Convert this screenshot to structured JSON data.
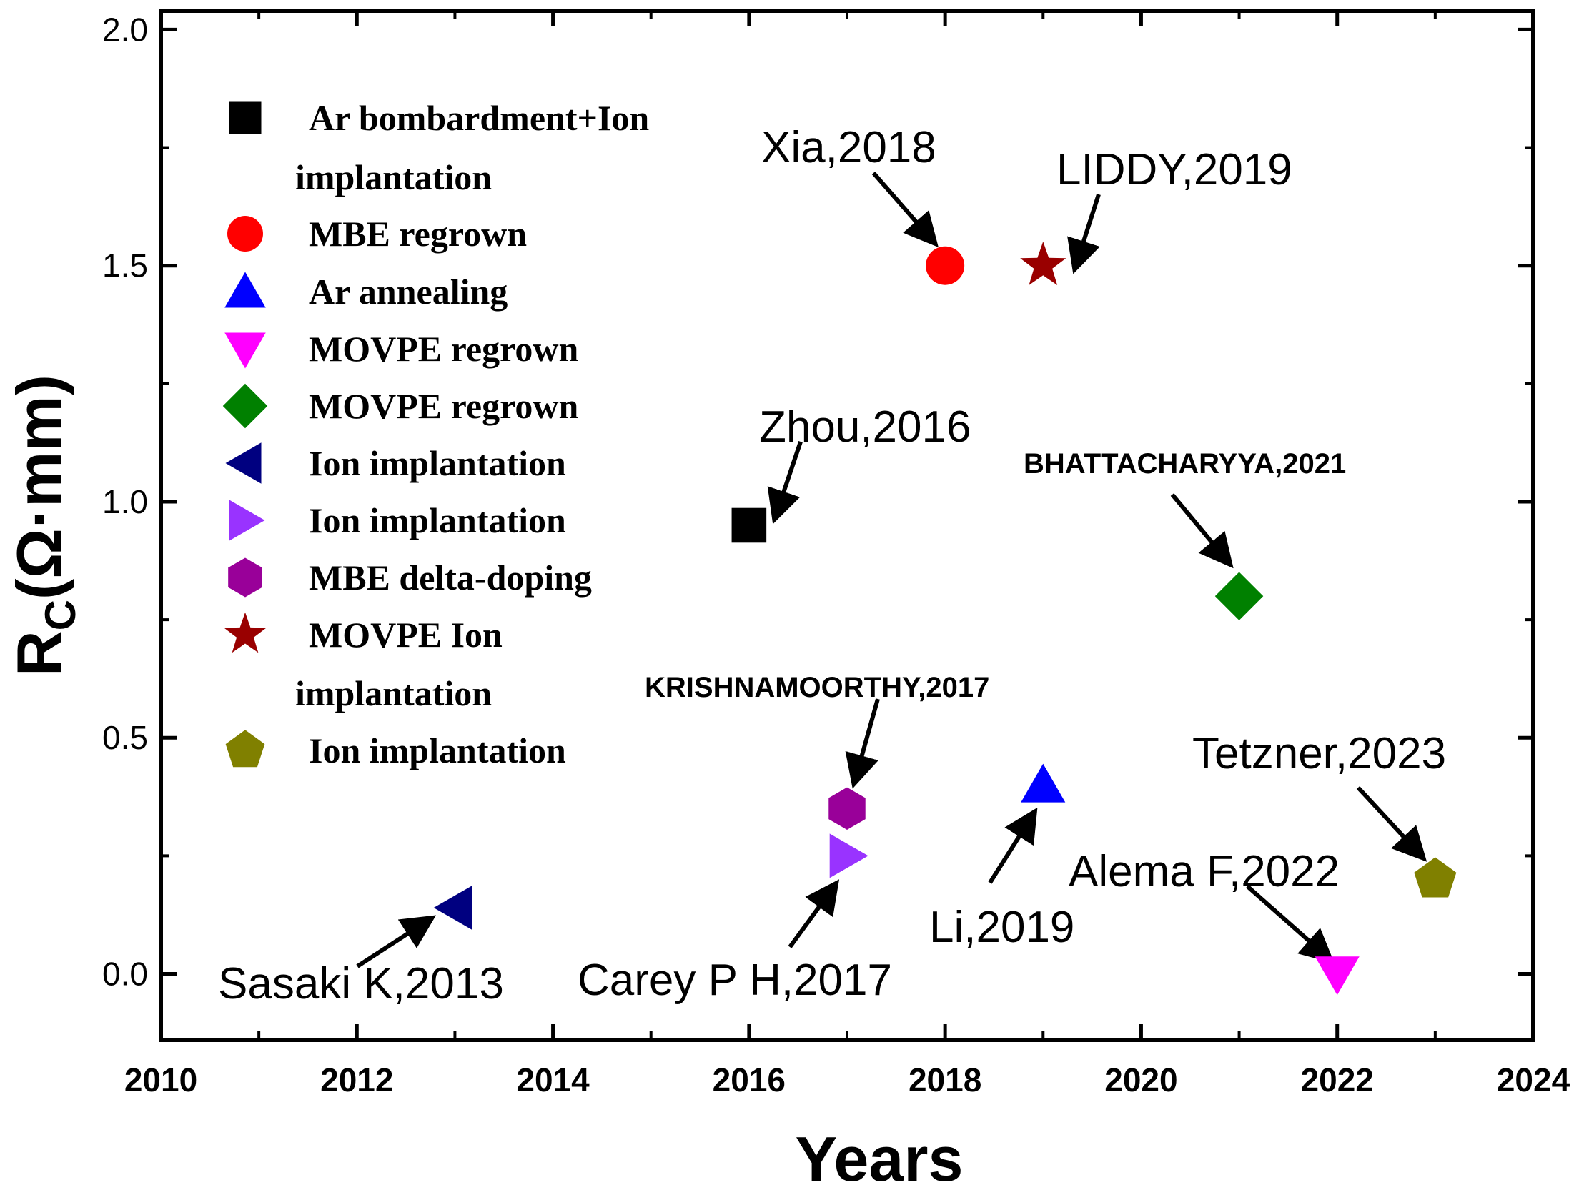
{
  "chart_data": {
    "type": "scatter",
    "title": "",
    "xlabel": "Years",
    "ylabel_main": "R",
    "ylabel_sub": "C",
    "ylabel_unit": "(Ω·mm)",
    "xlim": [
      2010,
      2024
    ],
    "ylim": [
      -0.14,
      2.04
    ],
    "xticks": [
      2010,
      2012,
      2014,
      2016,
      2018,
      2020,
      2022,
      2024
    ],
    "xtick_labels": [
      "2010",
      "2012",
      "2014",
      "2016",
      "2018",
      "2020",
      "2022",
      "2024"
    ],
    "yticks": [
      0.0,
      0.5,
      1.0,
      1.5,
      2.0
    ],
    "ytick_labels": [
      "0.0",
      "0.5",
      "1.0",
      "1.5",
      "2.0"
    ],
    "grid": false,
    "legend_position": "upper-left",
    "series": [
      {
        "name": "Ar bombardment+Ion implantation",
        "legend_lines": [
          "Ar bombardment+Ion",
          "implantation"
        ],
        "marker": "square",
        "color": "#000000",
        "x": 2016,
        "y": 0.95,
        "annotation": "Zhou,2016",
        "annotation_style": "plain"
      },
      {
        "name": "MBE regrown",
        "legend_lines": [
          " MBE regrown"
        ],
        "marker": "circle",
        "color": "#ff0000",
        "x": 2018,
        "y": 1.5,
        "annotation": "Xia,2018",
        "annotation_style": "plain"
      },
      {
        "name": "Ar annealing",
        "legend_lines": [
          "Ar annealing"
        ],
        "marker": "triangle-up",
        "color": "#0000ff",
        "x": 2019,
        "y": 0.4,
        "annotation": "Li,2019",
        "annotation_style": "plain"
      },
      {
        "name": "MOVPE regrown",
        "legend_lines": [
          "MOVPE regrown"
        ],
        "marker": "triangle-down",
        "color": "#ff00ff",
        "x": 2022,
        "y": 0.0,
        "annotation": "Alema F,2022",
        "annotation_style": "plain"
      },
      {
        "name": "MOVPE regrown",
        "legend_lines": [
          "MOVPE regrown"
        ],
        "marker": "diamond",
        "color": "#008000",
        "x": 2021,
        "y": 0.8,
        "annotation": "BHATTACHARYYA,2021",
        "annotation_style": "bold"
      },
      {
        "name": "Ion implantation",
        "legend_lines": [
          "Ion implantation"
        ],
        "marker": "triangle-left",
        "color": "#000080",
        "x": 2013,
        "y": 0.14,
        "annotation": "Sasaki K,2013",
        "annotation_style": "plain"
      },
      {
        "name": "Ion implantation",
        "legend_lines": [
          "Ion implantation"
        ],
        "marker": "triangle-right",
        "color": "#9933ff",
        "x": 2017,
        "y": 0.25,
        "annotation": "Carey P H,2017",
        "annotation_style": "plain"
      },
      {
        "name": "MBE delta-doping",
        "legend_lines": [
          "MBE delta-doping"
        ],
        "marker": "hexagon",
        "color": "#990099",
        "x": 2017,
        "y": 0.35,
        "annotation": "KRISHNAMOORTHY,2017",
        "annotation_style": "bold"
      },
      {
        "name": "MOVPE Ion implantation",
        "legend_lines": [
          "MOVPE Ion",
          "implantation"
        ],
        "marker": "star",
        "color": "#990000",
        "x": 2019,
        "y": 1.5,
        "annotation": "LIDDY,2019",
        "annotation_style": "plain"
      },
      {
        "name": "Ion implantation",
        "legend_lines": [
          "Ion implantation"
        ],
        "marker": "pentagon",
        "color": "#808000",
        "x": 2023,
        "y": 0.2,
        "annotation": "Tetzner,2023",
        "annotation_style": "plain"
      }
    ]
  }
}
